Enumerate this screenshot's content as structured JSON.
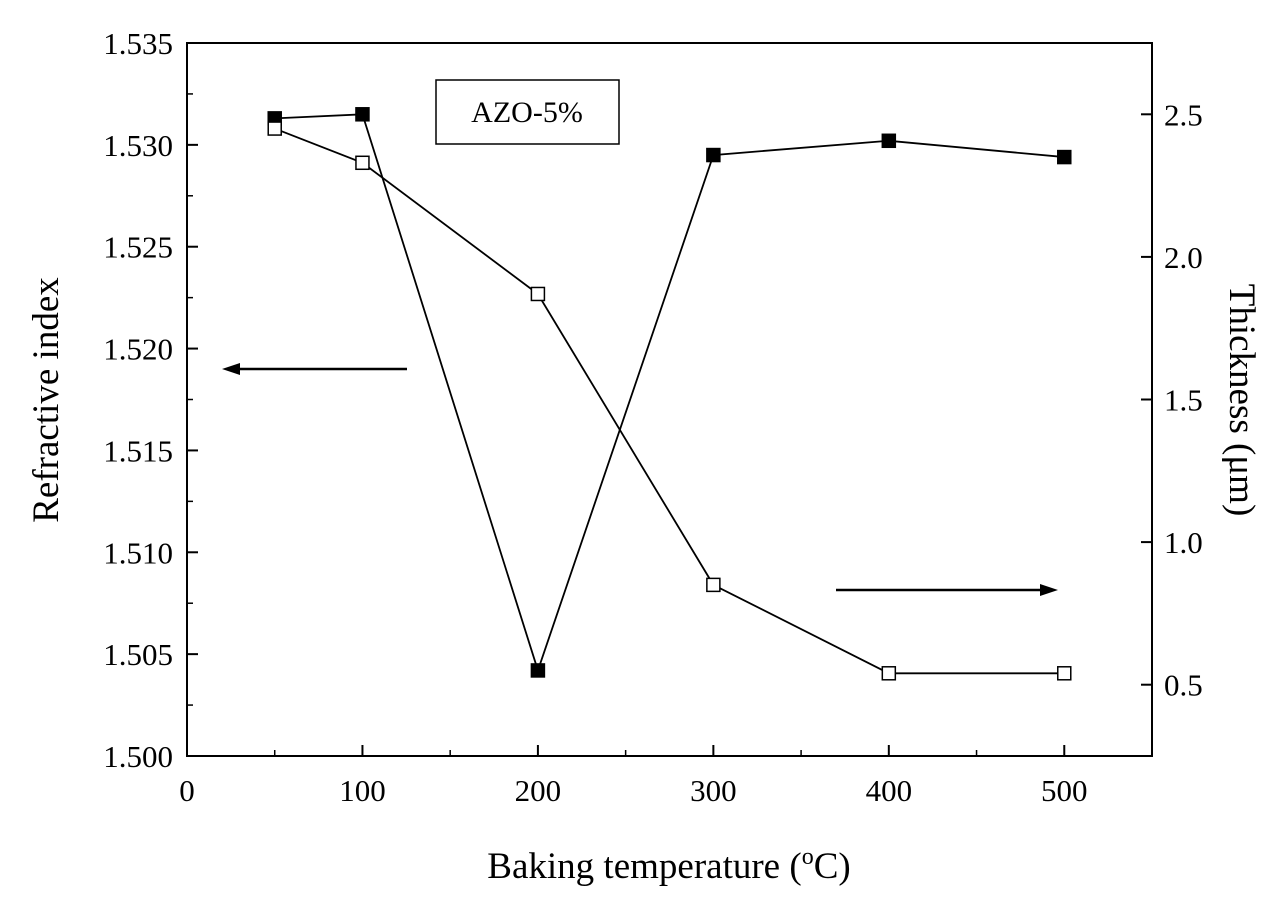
{
  "chart_data": {
    "type": "line",
    "title": "",
    "legend": {
      "label": "AZO-5%",
      "position": "top-left"
    },
    "xlabel": "Baking temperature",
    "xlabel_unit_prefix": "(",
    "xlabel_unit_superscript": "o",
    "xlabel_unit_suffix": "C)",
    "ylabel_left": "Refractive index",
    "ylabel_right": "Thickness (μm)",
    "xlim": [
      0,
      550
    ],
    "ylim_left": [
      1.5,
      1.535
    ],
    "ylim_right": [
      0.25,
      2.75
    ],
    "x_ticks": [
      0,
      100,
      200,
      300,
      400,
      500
    ],
    "x_tick_labels": [
      "0",
      "100",
      "200",
      "300",
      "400",
      "500"
    ],
    "y_left_ticks": [
      1.5,
      1.505,
      1.51,
      1.515,
      1.52,
      1.525,
      1.53,
      1.535
    ],
    "y_left_tick_labels": [
      "1.500",
      "1.505",
      "1.510",
      "1.515",
      "1.520",
      "1.525",
      "1.530",
      "1.535"
    ],
    "y_right_ticks": [
      0.5,
      1.0,
      1.5,
      2.0,
      2.5
    ],
    "y_right_tick_labels": [
      "0.5",
      "1.0",
      "1.5",
      "2.0",
      "2.5"
    ],
    "grid": false,
    "series": [
      {
        "axis": "left",
        "marker": "filled-square",
        "x": [
          50,
          100,
          200,
          300,
          400,
          500
        ],
        "y": [
          1.5313,
          1.5315,
          1.5042,
          1.5295,
          1.5302,
          1.5294
        ]
      },
      {
        "axis": "right",
        "marker": "open-square",
        "x": [
          50,
          100,
          200,
          300,
          400,
          500
        ],
        "y": [
          2.45,
          2.33,
          1.87,
          0.85,
          0.54,
          0.54
        ]
      }
    ],
    "annotations": [
      {
        "type": "arrow",
        "direction": "left",
        "points_to_axis": "left"
      },
      {
        "type": "arrow",
        "direction": "right",
        "points_to_axis": "right"
      }
    ]
  }
}
